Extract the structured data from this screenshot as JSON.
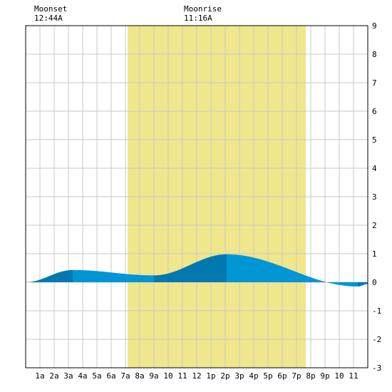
{
  "moon": {
    "moonset_label": "Moonset",
    "moonset_time": "12:44A",
    "moonrise_label": "Moonrise",
    "moonrise_time": "11:16A"
  },
  "chart_data": {
    "type": "area",
    "title": "",
    "xlabel": "",
    "ylabel": "",
    "xlim": [
      0,
      24
    ],
    "ylim": [
      -3,
      9
    ],
    "grid": true,
    "x_ticks": [
      {
        "hour": 1,
        "label": "1a"
      },
      {
        "hour": 2,
        "label": "2a"
      },
      {
        "hour": 3,
        "label": "3a"
      },
      {
        "hour": 4,
        "label": "4a"
      },
      {
        "hour": 5,
        "label": "5a"
      },
      {
        "hour": 6,
        "label": "6a"
      },
      {
        "hour": 7,
        "label": "7a"
      },
      {
        "hour": 8,
        "label": "8a"
      },
      {
        "hour": 9,
        "label": "9a"
      },
      {
        "hour": 10,
        "label": "10"
      },
      {
        "hour": 11,
        "label": "11"
      },
      {
        "hour": 12,
        "label": "12"
      },
      {
        "hour": 13,
        "label": "1p"
      },
      {
        "hour": 14,
        "label": "2p"
      },
      {
        "hour": 15,
        "label": "3p"
      },
      {
        "hour": 16,
        "label": "4p"
      },
      {
        "hour": 17,
        "label": "5p"
      },
      {
        "hour": 18,
        "label": "6p"
      },
      {
        "hour": 19,
        "label": "7p"
      },
      {
        "hour": 20,
        "label": "8p"
      },
      {
        "hour": 21,
        "label": "9p"
      },
      {
        "hour": 22,
        "label": "10"
      },
      {
        "hour": 23,
        "label": "11"
      }
    ],
    "y_ticks": [
      "-3",
      "-2",
      "-1",
      "0",
      "1",
      "2",
      "3",
      "4",
      "5",
      "6",
      "7",
      "8",
      "9"
    ],
    "daylight": {
      "start_hour": 7.15,
      "end_hour": 19.65
    },
    "moonset_hour": 0.73,
    "moonrise_hour": 11.27,
    "tide_turns": [
      {
        "hour": 0,
        "height": 0.0
      },
      {
        "hour": 3.3,
        "height": 0.43
      },
      {
        "hour": 9.0,
        "height": 0.24
      },
      {
        "hour": 14.1,
        "height": 0.98
      },
      {
        "hour": 23.3,
        "height": -0.15
      },
      {
        "hour": 24,
        "height": -0.06
      }
    ],
    "series": [
      {
        "name": "",
        "x": [
          0,
          1,
          2,
          3,
          3.3,
          4,
          5,
          6,
          7,
          8,
          9,
          10,
          11,
          12,
          13,
          14,
          14.1,
          15,
          16,
          17,
          18,
          19,
          20,
          21,
          22,
          23,
          23.3,
          24
        ],
        "y": [
          0.0,
          0.14,
          0.32,
          0.42,
          0.43,
          0.42,
          0.39,
          0.34,
          0.28,
          0.25,
          0.24,
          0.32,
          0.52,
          0.74,
          0.92,
          0.98,
          0.98,
          0.95,
          0.86,
          0.71,
          0.52,
          0.31,
          0.11,
          -0.04,
          -0.12,
          -0.15,
          -0.15,
          -0.06
        ]
      }
    ],
    "colors": {
      "daylight": "#f0e68c",
      "water_light": "#0096d6",
      "water_dark": "#0079b0",
      "grid": "#c8c8c8",
      "frame": "#000000"
    }
  }
}
